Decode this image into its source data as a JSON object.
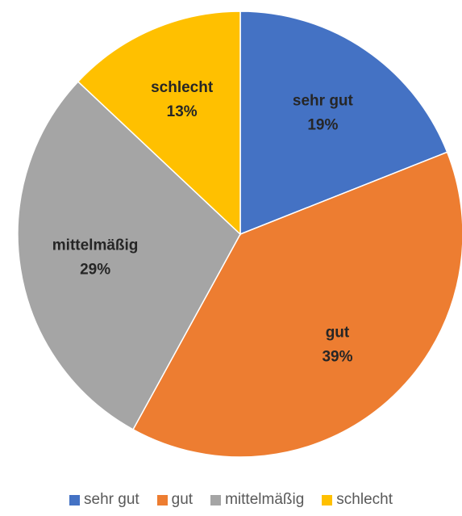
{
  "chart_data": {
    "type": "pie",
    "categories": [
      "sehr gut",
      "gut",
      "mittelmäßig",
      "schlecht"
    ],
    "values": [
      19,
      39,
      29,
      13
    ],
    "value_labels": [
      "19%",
      "39%",
      "29%",
      "13%"
    ],
    "colors": [
      "#4472c4",
      "#ed7d31",
      "#a5a5a5",
      "#ffc000"
    ],
    "legend": "bottom"
  }
}
